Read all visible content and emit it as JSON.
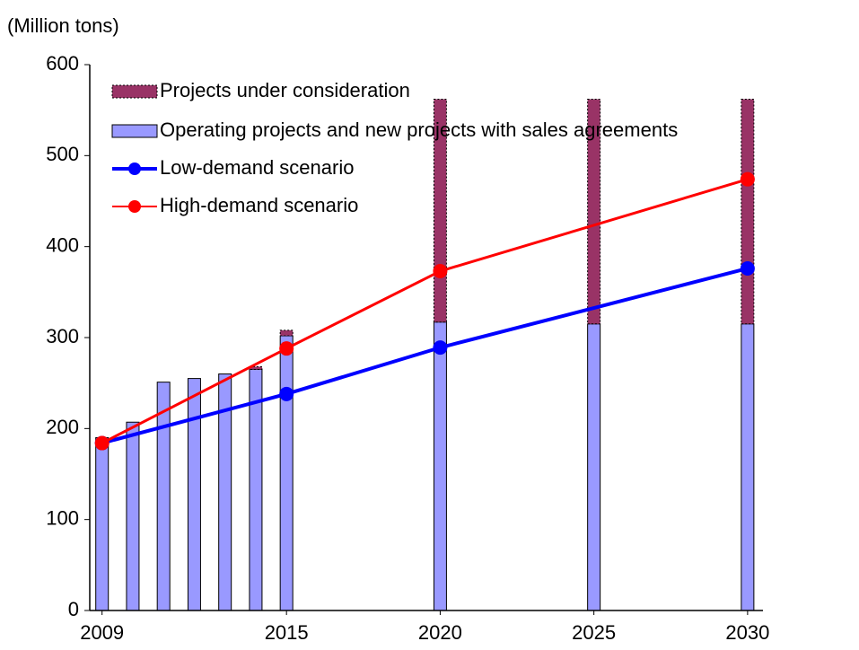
{
  "chart_data": {
    "type": "bar",
    "y_label": "(Million tons)",
    "xlim": [
      2008.6,
      2030.5
    ],
    "xticks": [
      2009,
      2015,
      2020,
      2025,
      2030
    ],
    "ylim": [
      0,
      600
    ],
    "yticks": [
      0,
      100,
      200,
      300,
      400,
      500,
      600
    ],
    "bars": {
      "x": [
        2009,
        2010,
        2011,
        2012,
        2013,
        2014,
        2015,
        2020,
        2025,
        2030
      ],
      "series": [
        {
          "name": "Operating projects and new projects with sales agreements",
          "color": "#9999ff",
          "values": [
            190,
            207,
            251,
            255,
            260,
            265,
            302,
            317,
            315,
            315
          ]
        },
        {
          "name": "Projects under consideration",
          "color": "#993366",
          "values": [
            0,
            0,
            0,
            0,
            0,
            3,
            6,
            245,
            247,
            247
          ]
        }
      ]
    },
    "lines": {
      "x": [
        2009,
        2015,
        2020,
        2030
      ],
      "series": [
        {
          "name": "Low-demand scenario",
          "color": "#0000ff",
          "values": [
            184,
            238,
            289,
            376
          ]
        },
        {
          "name": "High-demand scenario",
          "color": "#ff0000",
          "values": [
            184,
            288,
            373,
            474
          ]
        }
      ]
    }
  }
}
